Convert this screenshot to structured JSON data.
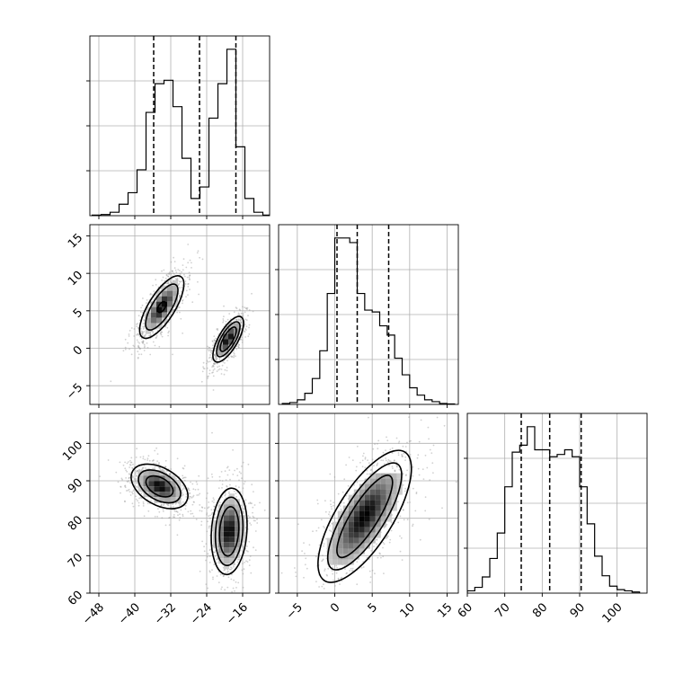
{
  "chart_data": {
    "type": "corner",
    "grid": true,
    "axes": {
      "p0": {
        "range": [
          -50,
          -10
        ],
        "ticks": [
          -48,
          -40,
          -32,
          -24,
          -16
        ],
        "tick_labels": [
          "−48",
          "−40",
          "−32",
          "−24",
          "−16"
        ]
      },
      "p1": {
        "range": [
          -7.5,
          16.5
        ],
        "ticks": [
          -5,
          0,
          5,
          10,
          15
        ],
        "tick_labels": [
          "−5",
          "0",
          "5",
          "10",
          "15"
        ]
      },
      "p2": {
        "range": [
          60,
          108
        ],
        "ticks": [
          60,
          70,
          80,
          90,
          100
        ],
        "tick_labels": [
          "60",
          "70",
          "80",
          "90",
          "100"
        ]
      }
    },
    "histograms": [
      {
        "param": "p0",
        "bin_edges": [
          -49.5,
          -47.5,
          -45.5,
          -43.5,
          -41.5,
          -39.5,
          -37.5,
          -35.5,
          -33.5,
          -31.5,
          -29.5,
          -27.5,
          -25.5,
          -23.5,
          -21.5,
          -19.5,
          -17.5,
          -15.5,
          -13.5,
          -11.5,
          -9.5
        ],
        "counts": [
          0.5,
          1,
          3,
          10,
          20,
          40,
          90,
          115,
          118,
          95,
          50,
          15,
          25,
          85,
          115,
          145,
          60,
          15,
          3,
          0.5
        ],
        "quantiles": [
          -35.8,
          -25.6,
          -17.5
        ]
      },
      {
        "param": "p1",
        "bin_edges": [
          -7,
          -6,
          -5,
          -4,
          -3,
          -2,
          -1,
          0,
          1,
          2,
          3,
          4,
          5,
          6,
          7,
          8,
          9,
          10,
          11,
          12,
          13,
          14,
          15,
          16
        ],
        "counts": [
          1,
          2,
          5,
          12,
          28,
          58,
          120,
          180,
          180,
          175,
          120,
          102,
          100,
          85,
          75,
          50,
          32,
          18,
          10,
          5,
          3,
          1,
          0.5
        ],
        "quantiles": [
          0.3,
          3.0,
          7.2
        ]
      },
      {
        "param": "p2",
        "bin_edges": [
          60,
          62,
          64,
          66,
          68,
          70,
          72,
          74,
          76,
          78,
          80,
          82,
          84,
          86,
          88,
          90,
          92,
          94,
          96,
          98,
          100,
          102,
          104,
          106
        ],
        "counts": [
          2,
          5,
          14,
          30,
          52,
          92,
          122,
          128,
          144,
          124,
          124,
          118,
          120,
          124,
          118,
          92,
          60,
          32,
          15,
          6,
          3,
          2,
          1
        ],
        "quantiles": [
          74.4,
          82.0,
          90.4
        ]
      }
    ],
    "scatter_2d": [
      {
        "x": "p0",
        "y": "p1",
        "modes": [
          {
            "center": [
              -34,
              5.5
            ],
            "contours": [
              {
                "rx": 6.0,
                "ry": 2.2,
                "angle_deg": 58
              },
              {
                "rx": 4.4,
                "ry": 1.6,
                "angle_deg": 58
              },
              {
                "rx": 1.0,
                "ry": 0.55,
                "angle_deg": 58
              }
            ]
          },
          {
            "center": [
              -19.2,
              1.2
            ],
            "contours": [
              {
                "rx": 4.3,
                "ry": 1.6,
                "angle_deg": 60
              },
              {
                "rx": 3.3,
                "ry": 1.2,
                "angle_deg": 60
              },
              {
                "rx": 2.3,
                "ry": 0.8,
                "angle_deg": 60
              }
            ]
          }
        ]
      },
      {
        "x": "p0",
        "y": "p2",
        "modes": [
          {
            "center": [
              -34.5,
              88.5
            ],
            "contours": [
              {
                "rx": 7.5,
                "ry": 4.5,
                "angle_deg": -30
              },
              {
                "rx": 5.6,
                "ry": 3.3,
                "angle_deg": -30
              },
              {
                "rx": 3.6,
                "ry": 2.1,
                "angle_deg": -30
              }
            ]
          },
          {
            "center": [
              -19.0,
              76.5
            ],
            "contours": [
              {
                "rx": 10.5,
                "ry": 4.3,
                "angle_deg": 86
              },
              {
                "rx": 8.3,
                "ry": 3.3,
                "angle_deg": 86
              },
              {
                "rx": 6.0,
                "ry": 2.3,
                "angle_deg": 86
              }
            ]
          }
        ]
      },
      {
        "x": "p1",
        "y": "p2",
        "modes": [
          {
            "center": [
              4.0,
              80.5
            ],
            "contours": [
              {
                "rx": 13.5,
                "ry": 5.0,
                "angle_deg": 58
              },
              {
                "rx": 11.0,
                "ry": 3.6,
                "angle_deg": 58
              },
              {
                "rx": 8.5,
                "ry": 2.4,
                "angle_deg": 58
              }
            ]
          }
        ]
      }
    ]
  }
}
